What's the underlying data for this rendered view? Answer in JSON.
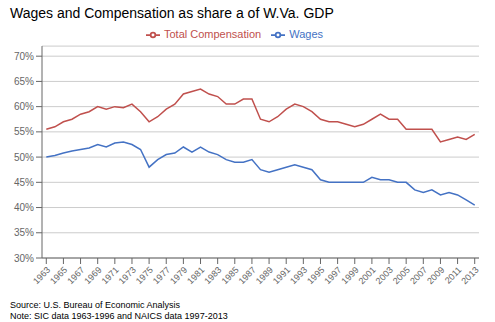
{
  "chart_data": {
    "type": "line",
    "title": "Wages and Compensation as share a of W.Va. GDP",
    "annotations": [
      "Source: U.S. Bureau of Economic Analysis",
      "Note: SIC data 1963-1996 and NAICS data 1997-2013"
    ],
    "x": [
      1963,
      1964,
      1965,
      1966,
      1967,
      1968,
      1969,
      1970,
      1971,
      1972,
      1973,
      1974,
      1975,
      1976,
      1977,
      1978,
      1979,
      1980,
      1981,
      1982,
      1983,
      1984,
      1985,
      1986,
      1987,
      1988,
      1989,
      1990,
      1991,
      1992,
      1993,
      1994,
      1995,
      1996,
      1997,
      1998,
      1999,
      2000,
      2001,
      2002,
      2003,
      2004,
      2005,
      2006,
      2007,
      2008,
      2009,
      2010,
      2011,
      2012,
      2013
    ],
    "series": [
      {
        "name": "Wages",
        "color": "#4472c4",
        "values": [
          50.0,
          50.3,
          50.8,
          51.2,
          51.5,
          51.8,
          52.5,
          52.0,
          52.8,
          53.0,
          52.5,
          51.5,
          48.0,
          49.5,
          50.5,
          50.8,
          52.0,
          51.0,
          52.0,
          51.0,
          50.5,
          49.5,
          49.0,
          49.0,
          49.5,
          47.5,
          47.0,
          47.5,
          48.0,
          48.5,
          48.0,
          47.5,
          45.5,
          45.0,
          45.0,
          45.0,
          45.0,
          45.0,
          46.0,
          45.5,
          45.5,
          45.0,
          45.0,
          43.5,
          43.0,
          43.5,
          42.5,
          43.0,
          42.5,
          41.5,
          40.5
        ]
      },
      {
        "name": "Total Compensation",
        "color": "#c0504d",
        "values": [
          55.5,
          56.0,
          57.0,
          57.5,
          58.5,
          59.0,
          60.0,
          59.5,
          60.0,
          59.8,
          60.5,
          59.0,
          57.0,
          58.0,
          59.5,
          60.5,
          62.5,
          63.0,
          63.5,
          62.5,
          62.0,
          60.5,
          60.5,
          61.5,
          61.5,
          57.5,
          57.0,
          58.0,
          59.5,
          60.5,
          60.0,
          59.0,
          57.5,
          57.0,
          57.0,
          56.5,
          56.0,
          56.5,
          57.5,
          58.5,
          57.5,
          57.5,
          55.5,
          55.5,
          55.5,
          55.5,
          53.0,
          53.5,
          54.0,
          53.5,
          54.5
        ]
      }
    ],
    "xlim": [
      1962.5,
      2013.5
    ],
    "xticks": [
      1963,
      1965,
      1967,
      1969,
      1971,
      1973,
      1975,
      1977,
      1979,
      1981,
      1983,
      1985,
      1987,
      1989,
      1991,
      1993,
      1995,
      1997,
      1999,
      2001,
      2003,
      2005,
      2007,
      2009,
      2011,
      2013
    ],
    "ylim": [
      30,
      72
    ],
    "yticks": [
      {
        "value": 30,
        "label": "30%"
      },
      {
        "value": 35,
        "label": "35%"
      },
      {
        "value": 40,
        "label": "40%"
      },
      {
        "value": 45,
        "label": "45%"
      },
      {
        "value": 50,
        "label": "50%"
      },
      {
        "value": 55,
        "label": "55%"
      },
      {
        "value": 60,
        "label": "60%"
      },
      {
        "value": 65,
        "label": "65%"
      },
      {
        "value": 70,
        "label": "70%"
      }
    ],
    "grid": true,
    "legend": "top"
  }
}
